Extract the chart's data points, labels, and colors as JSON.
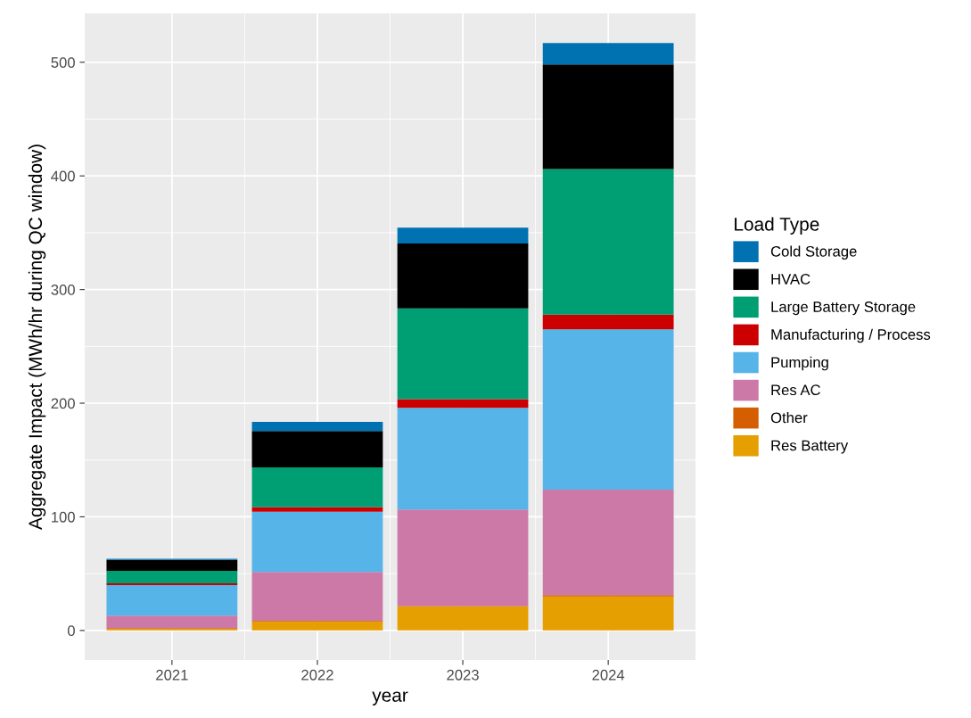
{
  "chart_data": {
    "type": "bar",
    "stacked": true,
    "xlabel": "year",
    "ylabel": "Aggregate Impact (MWh/hr during QC window)",
    "legend_title": "Load Type",
    "legend": "right",
    "categories": [
      "2021",
      "2022",
      "2023",
      "2024"
    ],
    "series": [
      {
        "name": "Res Battery",
        "color": "#e69f00",
        "values": [
          1.5,
          8,
          21,
          30
        ]
      },
      {
        "name": "Other",
        "color": "#d55e00",
        "values": [
          0.5,
          0.5,
          0.5,
          1
        ]
      },
      {
        "name": "Res AC",
        "color": "#cc79a7",
        "values": [
          11,
          43,
          85,
          93
        ]
      },
      {
        "name": "Pumping",
        "color": "#56b4e9",
        "values": [
          27,
          53,
          89.5,
          141
        ]
      },
      {
        "name": "Manufacturing / Process",
        "color": "#cc0000",
        "values": [
          1.5,
          4,
          7.5,
          13
        ]
      },
      {
        "name": "Large Battery Storage",
        "color": "#009e73",
        "values": [
          11,
          35,
          80,
          128
        ]
      },
      {
        "name": "HVAC",
        "color": "#000000",
        "values": [
          9.5,
          32,
          57,
          92
        ]
      },
      {
        "name": "Cold Storage",
        "color": "#0072b2",
        "values": [
          1,
          8,
          14,
          19
        ]
      }
    ],
    "ylim": [
      -26,
      543
    ],
    "yticks": [
      0,
      100,
      200,
      300,
      400,
      500
    ],
    "grid": true
  }
}
